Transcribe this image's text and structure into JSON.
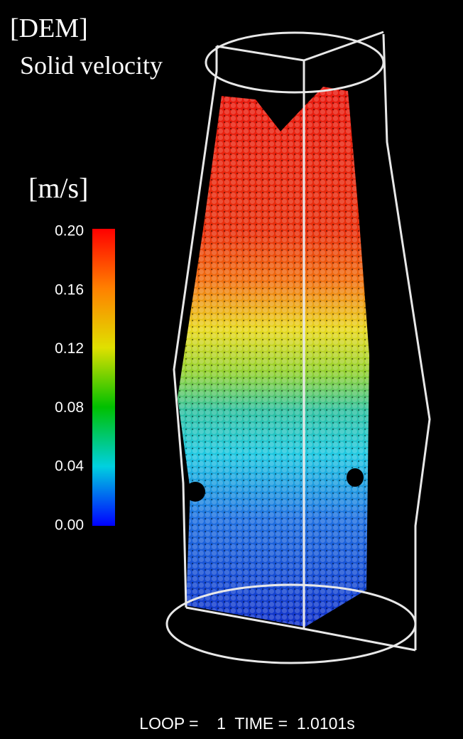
{
  "header": {
    "title": "[DEM]",
    "subtitle": "Solid velocity"
  },
  "colorbar": {
    "unit": "[m/s]",
    "ticks": [
      "0.20",
      "0.16",
      "0.12",
      "0.08",
      "0.04",
      "0.00"
    ]
  },
  "footer": {
    "status": "LOOP =    1  TIME =  1.0101s"
  }
}
